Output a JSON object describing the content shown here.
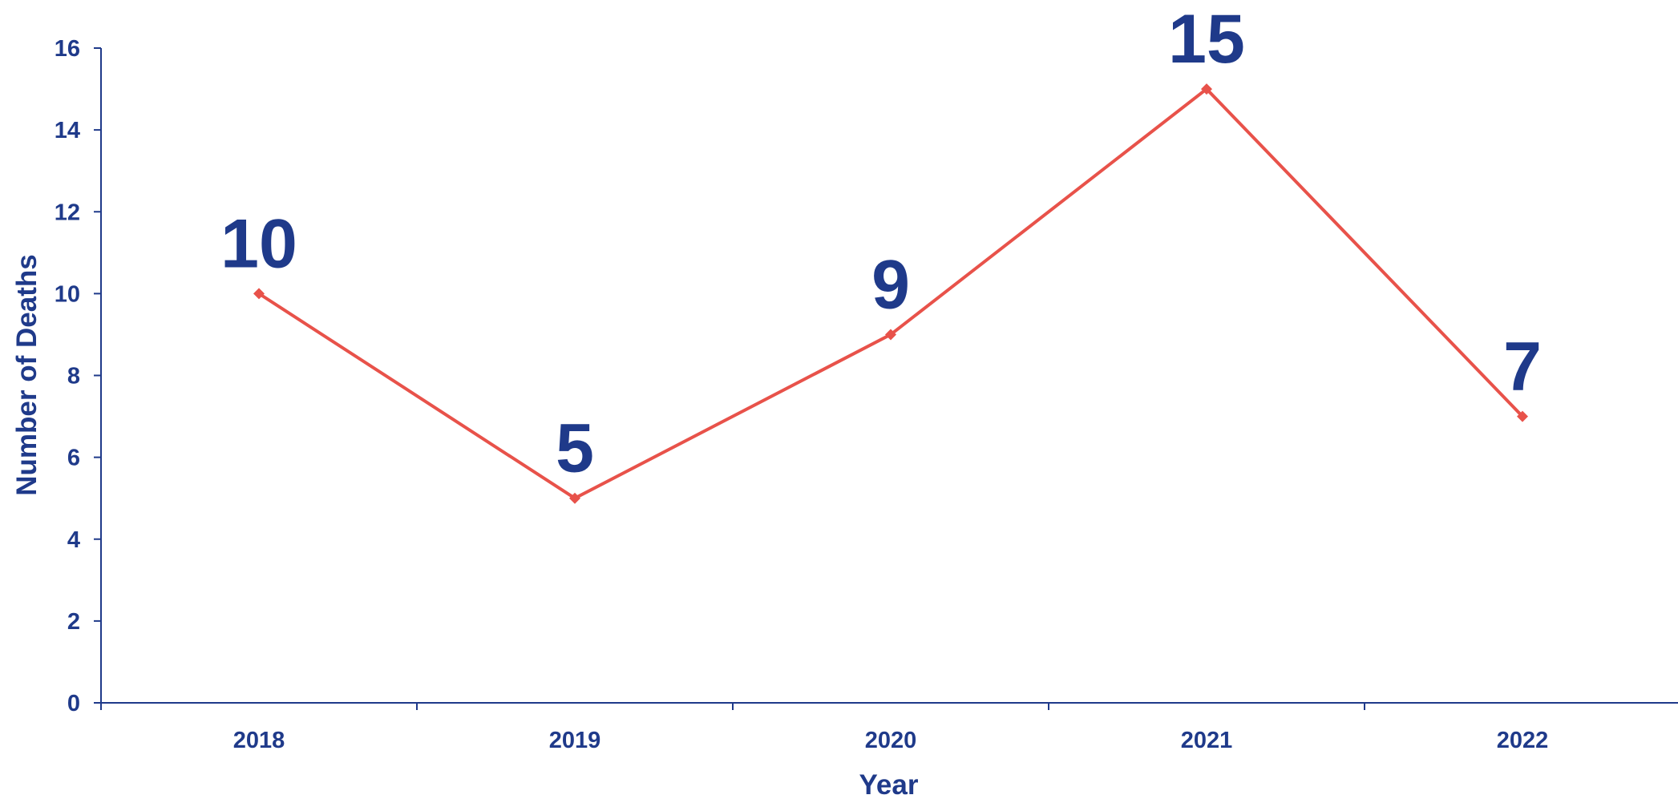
{
  "chart_data": {
    "type": "line",
    "title": "",
    "xlabel": "Year",
    "ylabel": "Number of Deaths",
    "categories": [
      "2018",
      "2019",
      "2020",
      "2021",
      "2022"
    ],
    "series": [
      {
        "values": [
          10,
          5,
          9,
          15,
          7
        ]
      }
    ],
    "ylim": [
      0,
      16
    ],
    "yticks": [
      0,
      2,
      4,
      6,
      8,
      10,
      12,
      14,
      16
    ],
    "grid": false,
    "legend": "none",
    "data_labels": [
      "10",
      "5",
      "9",
      "15",
      "7"
    ],
    "colors": {
      "line": "#e8524a",
      "text": "#1f3a8a",
      "axis": "#1f3a8a"
    }
  }
}
